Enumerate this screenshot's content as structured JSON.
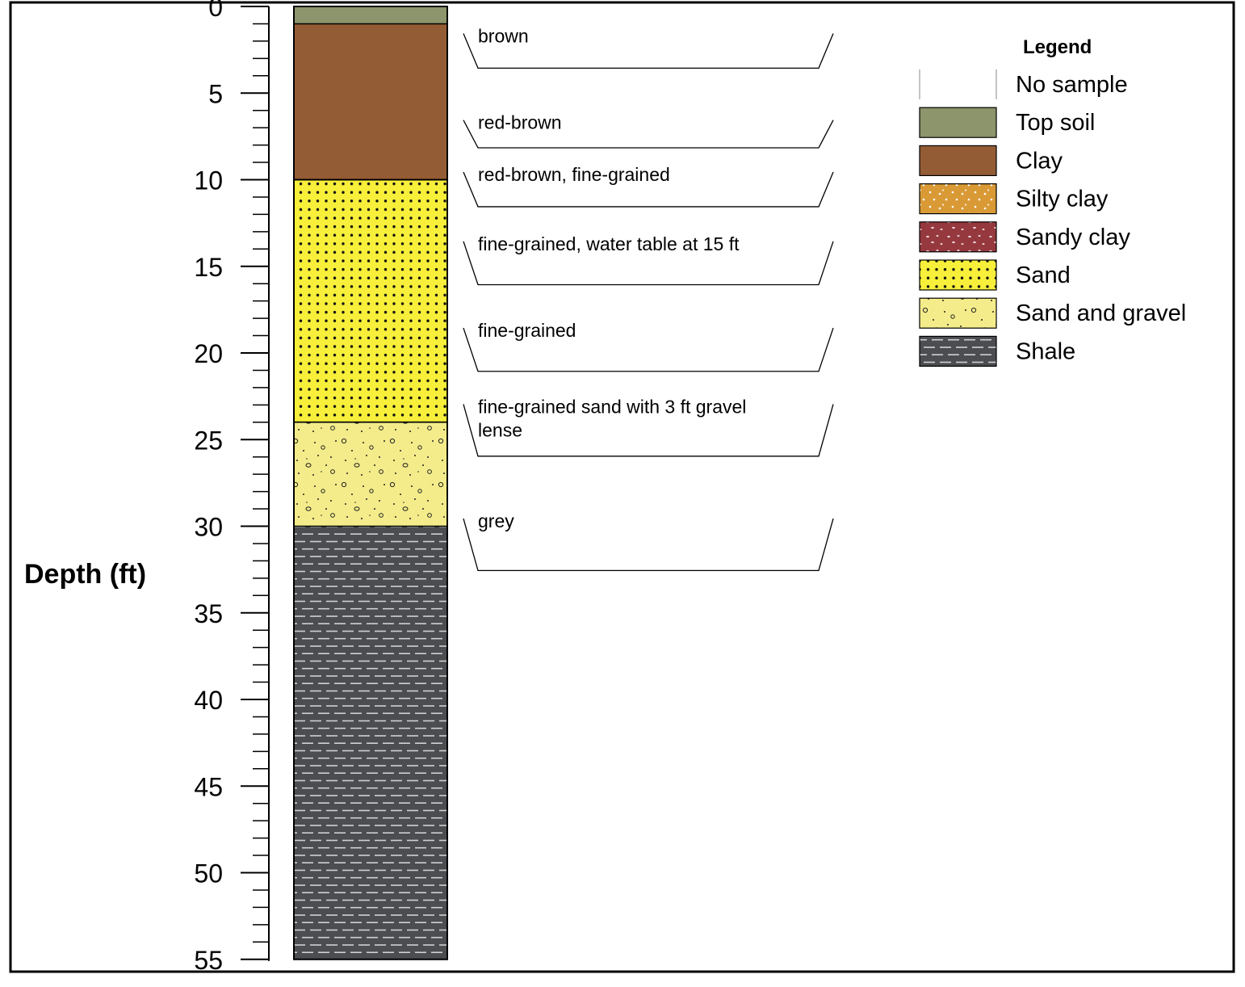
{
  "axis": {
    "label": "Depth (ft)",
    "range": [
      0,
      55
    ],
    "major_ticks": [
      0,
      5,
      10,
      15,
      20,
      25,
      30,
      35,
      40,
      45,
      50,
      55
    ],
    "minor_tick_step": 1
  },
  "layers": [
    {
      "name": "Top soil",
      "top": 0,
      "bottom": 1,
      "color": "#8c956b",
      "description": ""
    },
    {
      "name": "Clay",
      "top": 1,
      "bottom": 10,
      "color": "#945c34",
      "description_top": "brown",
      "description_bottom": "red-brown"
    },
    {
      "name": "Sand",
      "top": 10,
      "bottom": 24,
      "color": "#f7ef3a"
    },
    {
      "name": "Sand and gravel",
      "top": 24,
      "bottom": 30,
      "color": "#f4ec8a"
    },
    {
      "name": "Shale",
      "top": 30,
      "bottom": 55,
      "color": "#4b4d50"
    }
  ],
  "annotations": [
    {
      "text": "brown",
      "depth": 1
    },
    {
      "text": "red-brown",
      "depth": 6
    },
    {
      "text": "red-brown, fine-grained",
      "depth": 9
    },
    {
      "text": "fine-grained, water table at 15 ft",
      "depth": 13
    },
    {
      "text": "fine-grained",
      "depth": 18
    },
    {
      "text": "fine-grained sand with 3 ft gravel",
      "text2": "lense",
      "depth": 22.4
    },
    {
      "text": "grey",
      "depth": 29
    }
  ],
  "legend": {
    "title": "Legend",
    "items": [
      {
        "label": "No sample",
        "color": "#ffffff",
        "pattern": "none"
      },
      {
        "label": "Top soil",
        "color": "#8c956b",
        "pattern": "solid"
      },
      {
        "label": "Clay",
        "color": "#945c34",
        "pattern": "solid"
      },
      {
        "label": "Silty clay",
        "color": "#d99a36",
        "pattern": "specks-white"
      },
      {
        "label": "Sandy clay",
        "color": "#95393f",
        "pattern": "specks-pink"
      },
      {
        "label": "Sand",
        "color": "#f7ef3a",
        "pattern": "dots-black"
      },
      {
        "label": "Sand and gravel",
        "color": "#f4ec8a",
        "pattern": "gravel"
      },
      {
        "label": "Shale",
        "color": "#4b4d50",
        "pattern": "dashes-white"
      }
    ]
  }
}
